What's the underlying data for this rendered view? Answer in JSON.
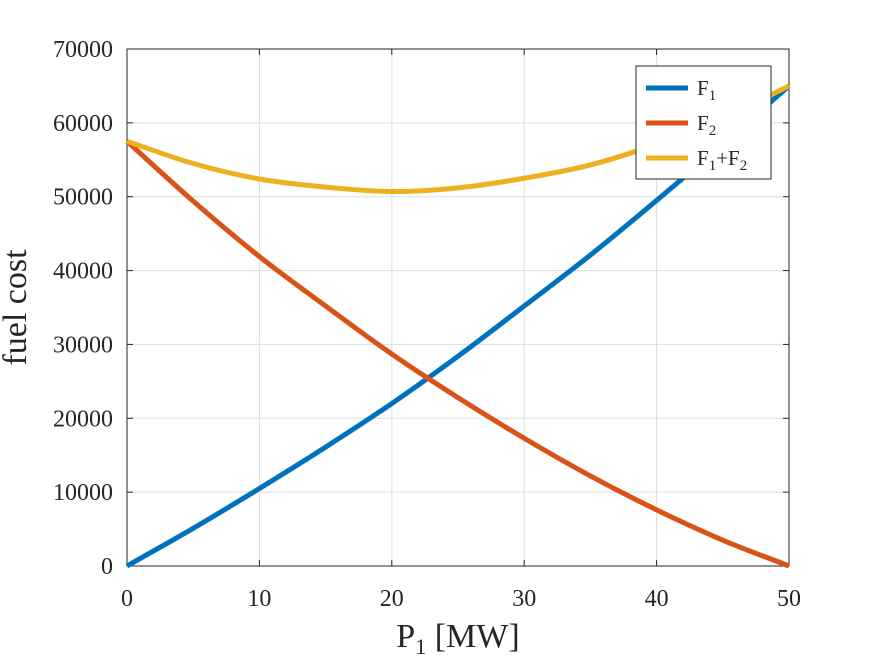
{
  "chart_data": {
    "type": "line",
    "xlabel": "P",
    "xlabel_sub": "1",
    "xlabel_suffix": " [MW]",
    "ylabel": "fuel cost",
    "xlim": [
      0,
      50
    ],
    "ylim": [
      0,
      70000
    ],
    "xticks": [
      0,
      10,
      20,
      30,
      40,
      50
    ],
    "yticks": [
      0,
      10000,
      20000,
      30000,
      40000,
      50000,
      60000,
      70000
    ],
    "grid": true,
    "legend_position": "top-right",
    "x": [
      0,
      5,
      10,
      15,
      20,
      25,
      30,
      35,
      40,
      45,
      50
    ],
    "series": [
      {
        "name": "F1",
        "legend_label": [
          {
            "t": "F",
            "sub": false
          },
          {
            "t": "1",
            "sub": true
          }
        ],
        "color": "#0072BD",
        "values": [
          0,
          5100,
          10500,
          16100,
          22000,
          28400,
          35200,
          42100,
          49500,
          57100,
          65000
        ]
      },
      {
        "name": "F2",
        "legend_label": [
          {
            "t": "F",
            "sub": false
          },
          {
            "t": "2",
            "sub": true
          }
        ],
        "color": "#D95319",
        "values": [
          57500,
          49400,
          41900,
          35200,
          28700,
          22800,
          17300,
          12200,
          7600,
          3500,
          0
        ]
      },
      {
        "name": "F1+F2",
        "legend_label": [
          {
            "t": "F",
            "sub": false
          },
          {
            "t": "1",
            "sub": true
          },
          {
            "t": "+F",
            "sub": false
          },
          {
            "t": "2",
            "sub": true
          }
        ],
        "color": "#EDB120",
        "values": [
          57500,
          54500,
          52400,
          51300,
          50700,
          51200,
          52500,
          54300,
          57100,
          60600,
          65000
        ]
      }
    ]
  }
}
